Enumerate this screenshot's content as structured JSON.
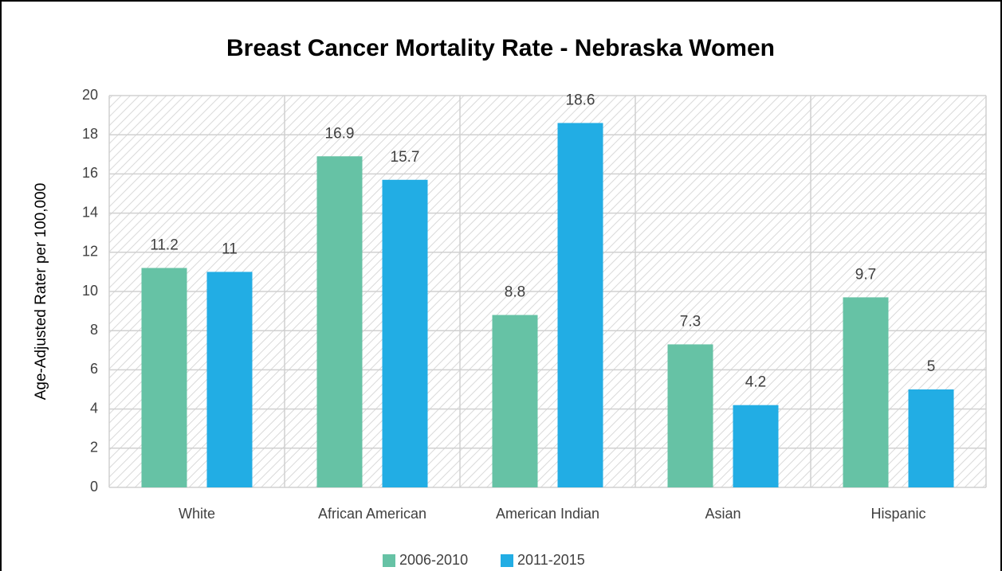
{
  "chart_data": {
    "type": "bar",
    "title": "Breast Cancer Mortality Rate - Nebraska Women",
    "y_label": "Age-Adjusted Rater per 100,000",
    "categories": [
      "White",
      "African American",
      "American Indian",
      "Asian",
      "Hispanic"
    ],
    "series": [
      {
        "name": "2006-2010",
        "color": "#66c2a5",
        "values": [
          11.2,
          16.9,
          8.8,
          7.3,
          9.7
        ]
      },
      {
        "name": "2011-2015",
        "color": "#22ade4",
        "values": [
          11,
          15.7,
          18.6,
          4.2,
          5
        ]
      }
    ],
    "ylim": [
      0,
      20
    ],
    "yticks": [
      0,
      2,
      4,
      6,
      8,
      10,
      12,
      14,
      16,
      18,
      20
    ],
    "grid": true,
    "legend": "bottom"
  }
}
